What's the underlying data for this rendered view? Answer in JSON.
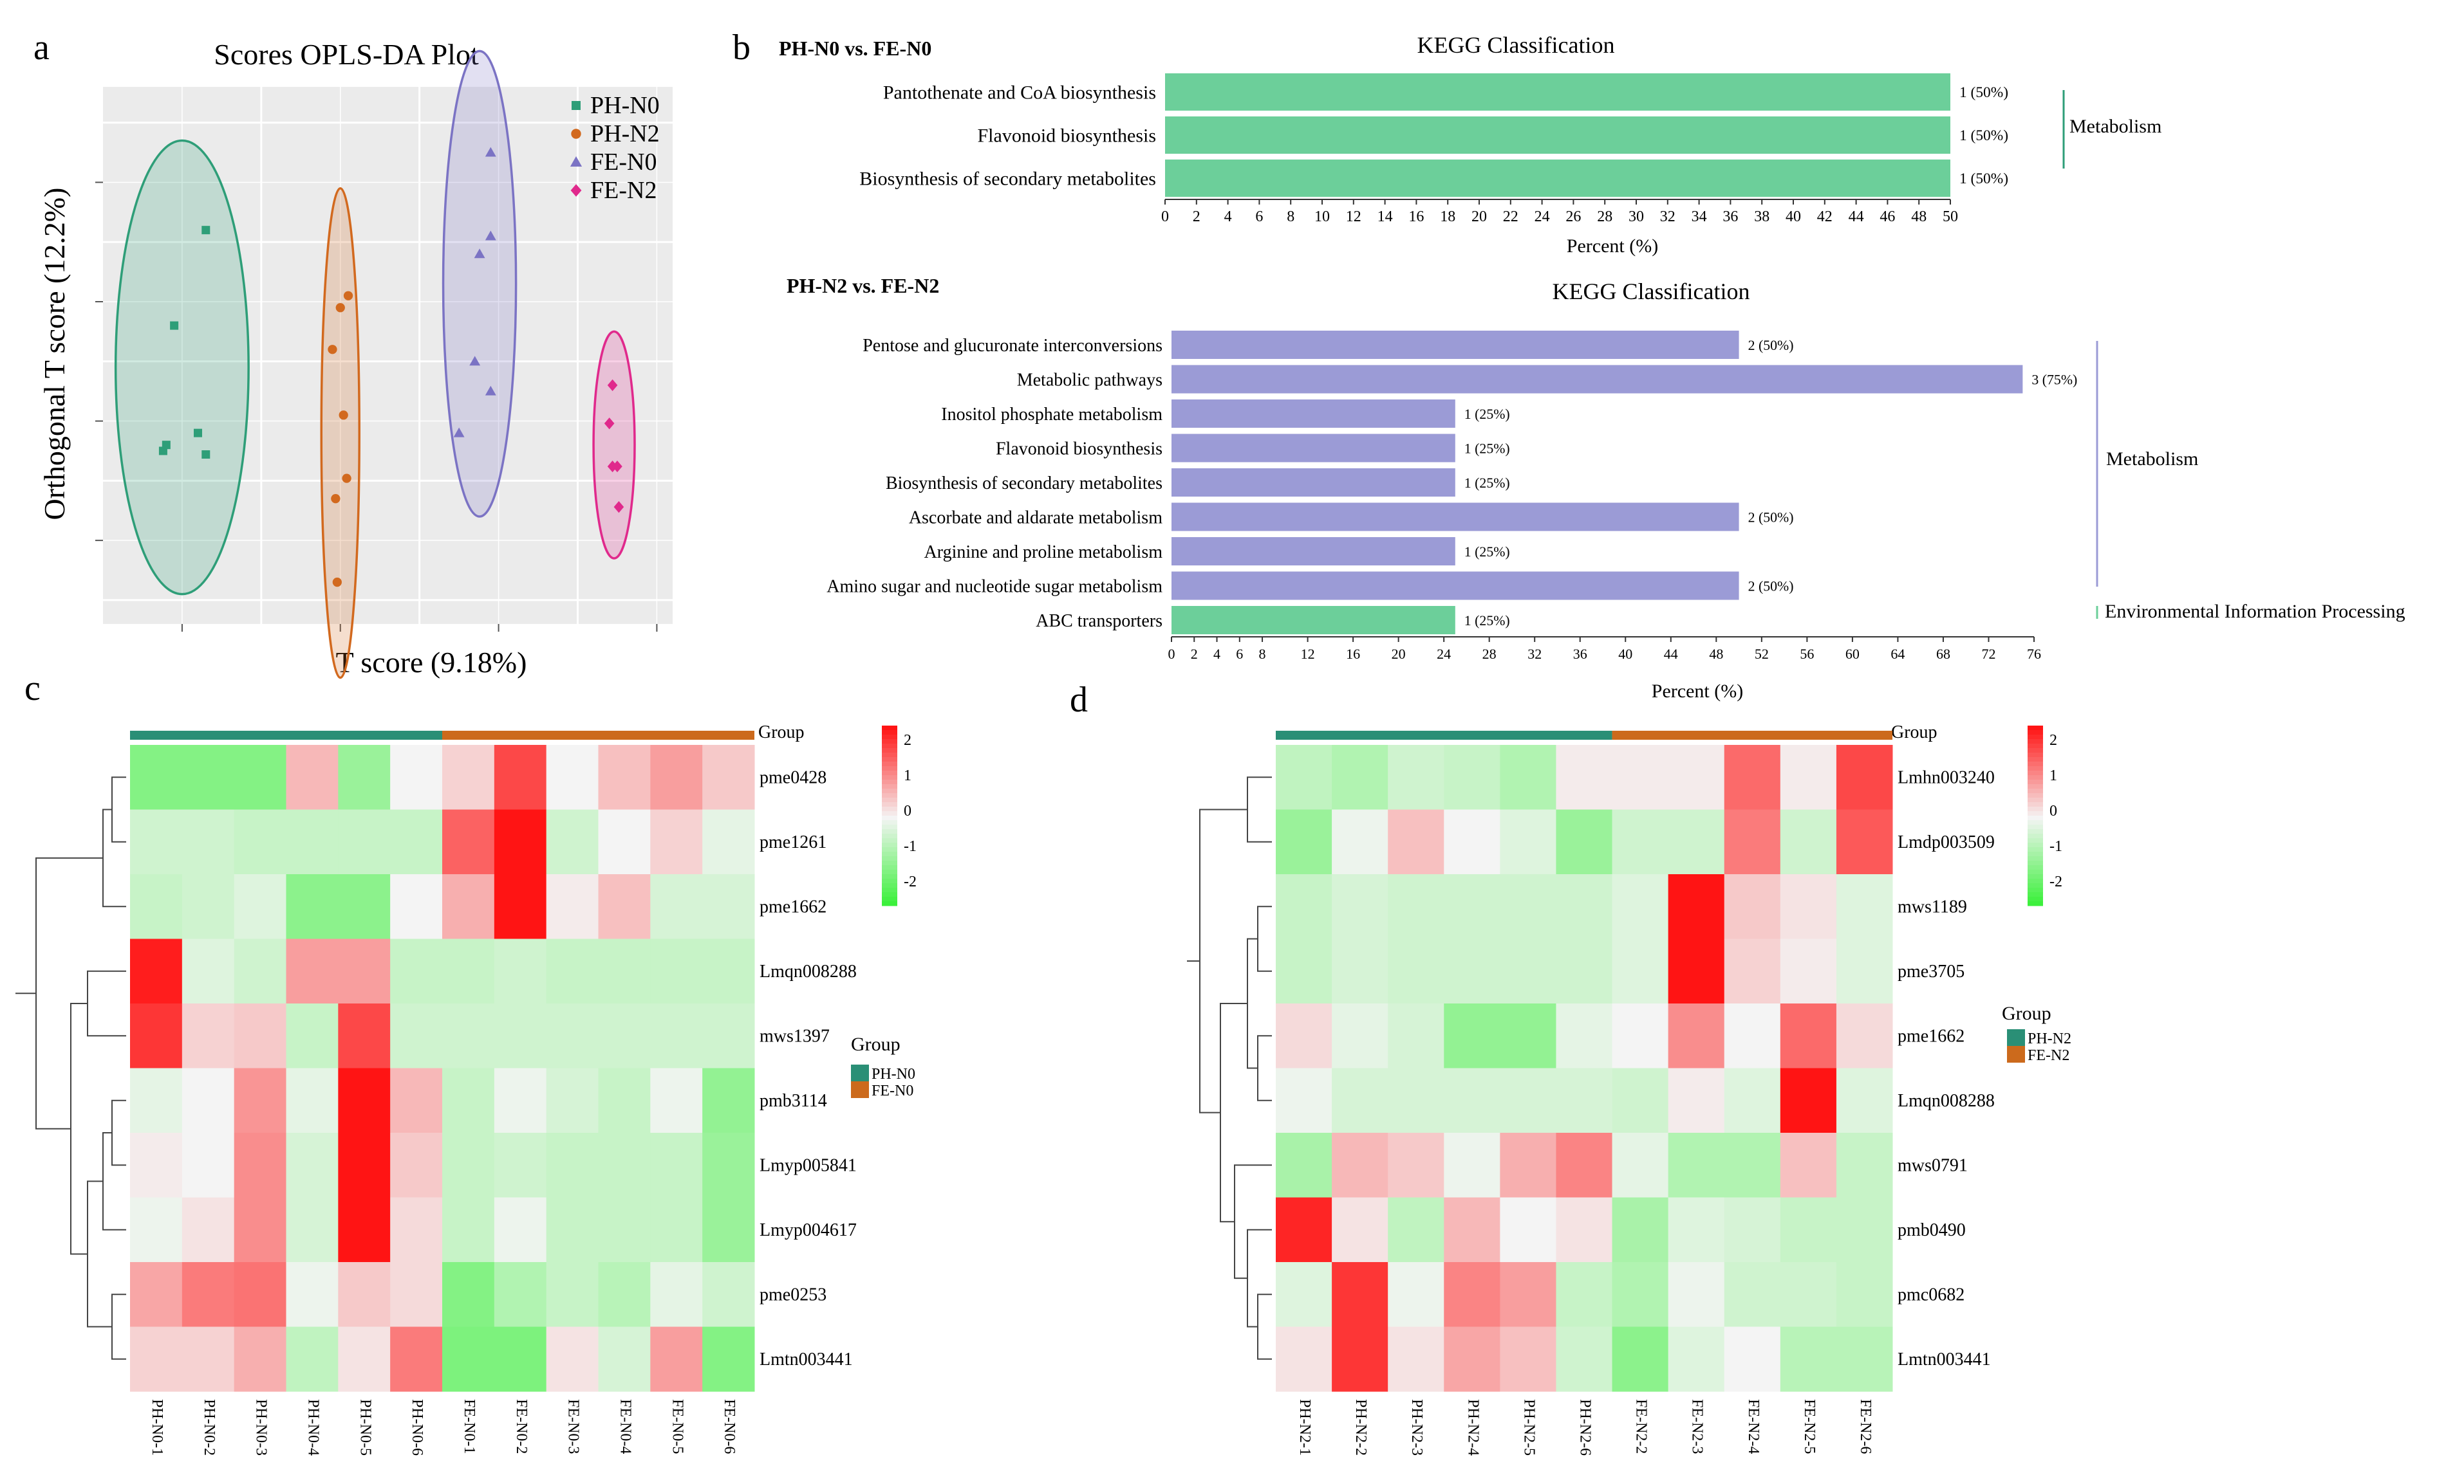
{
  "panel_labels": {
    "a": "a",
    "b": "b",
    "c": "c",
    "d": "d"
  },
  "colors": {
    "green": "#2e9e78",
    "orange": "#d2691e",
    "purple": "#7b73c4",
    "pink": "#e0298c",
    "bar_green": "#6ccf9a",
    "bar_purple": "#9b9bd6",
    "teal_bar": "#2a8f76",
    "orange_bar": "#cc6a1c",
    "heat_high": "#ff1a1a",
    "heat_mid": "#f4f4f4",
    "heat_low": "#33ee33"
  },
  "chart_data": [
    {
      "type": "scatter",
      "title": "Scores OPLS-DA Plot",
      "xlabel": "T score (9.18%)",
      "ylabel": "Orthogonal T score (12.2%)",
      "grid": true,
      "legend_position": "top-right",
      "series": [
        {
          "name": "PH-N0",
          "marker": "square",
          "points": [
            [
              -1.35,
              1.1
            ],
            [
              -1.55,
              0.3
            ],
            [
              -1.6,
              -0.7
            ],
            [
              -1.62,
              -0.75
            ],
            [
              -1.4,
              -0.6
            ],
            [
              -1.35,
              -0.78
            ]
          ]
        },
        {
          "name": "PH-N2",
          "marker": "circle",
          "points": [
            [
              -0.5,
              0.45
            ],
            [
              -0.45,
              0.55
            ],
            [
              -0.55,
              0.1
            ],
            [
              -0.48,
              -0.45
            ],
            [
              -0.46,
              -0.98
            ],
            [
              -0.53,
              -1.15
            ],
            [
              -0.52,
              -1.85
            ]
          ]
        },
        {
          "name": "FE-N0",
          "marker": "triangle",
          "points": [
            [
              0.45,
              1.75
            ],
            [
              0.38,
              0.9
            ],
            [
              0.45,
              1.05
            ],
            [
              0.35,
              0.0
            ],
            [
              0.45,
              -0.25
            ],
            [
              0.25,
              -0.6
            ]
          ]
        },
        {
          "name": "FE-N2",
          "marker": "diamond",
          "points": [
            [
              1.22,
              -0.2
            ],
            [
              1.2,
              -0.52
            ],
            [
              1.22,
              -0.88
            ],
            [
              1.25,
              -0.88
            ],
            [
              1.26,
              -1.22
            ]
          ]
        }
      ]
    },
    {
      "type": "bar",
      "comparison": "PH-N0 vs. FE-N0",
      "title": "KEGG Classification",
      "xlabel": "Percent (%)",
      "xlim": [
        0,
        50
      ],
      "ticks": [
        0,
        2,
        4,
        6,
        8,
        10,
        12,
        14,
        16,
        18,
        20,
        22,
        24,
        26,
        28,
        30,
        32,
        34,
        36,
        38,
        40,
        42,
        44,
        46,
        48,
        50
      ],
      "categories": [
        "Pantothenate and CoA biosynthesis",
        "Flavonoid biosynthesis",
        "Biosynthesis of secondary metabolites"
      ],
      "values": [
        50,
        50,
        50
      ],
      "labels": [
        "1 (50%)",
        "1 (50%)",
        "1 (50%)"
      ],
      "group_label": "Metabolism"
    },
    {
      "type": "bar",
      "comparison": "PH-N2 vs. FE-N2",
      "title": "KEGG Classification",
      "xlabel": "Percent (%)",
      "xlim": [
        0,
        76
      ],
      "ticks": [
        0,
        2,
        4,
        6,
        8,
        12,
        16,
        20,
        24,
        28,
        32,
        36,
        40,
        44,
        48,
        52,
        56,
        60,
        64,
        68,
        72,
        76
      ],
      "categories": [
        "Pentose and glucuronate interconversions",
        "Metabolic pathways",
        "Inositol phosphate metabolism",
        "Flavonoid biosynthesis",
        "Biosynthesis of secondary metabolites",
        "Ascorbate and aldarate metabolism",
        "Arginine and proline metabolism",
        "Amino sugar and nucleotide sugar metabolism",
        "ABC transporters"
      ],
      "values": [
        50,
        75,
        25,
        25,
        25,
        50,
        25,
        50,
        25
      ],
      "labels": [
        "2 (50%)",
        "3 (75%)",
        "1 (25%)",
        "1 (25%)",
        "1 (25%)",
        "2 (50%)",
        "1 (25%)",
        "2 (50%)",
        "1 (25%)"
      ],
      "bar_colors": [
        "purple",
        "purple",
        "purple",
        "purple",
        "purple",
        "purple",
        "purple",
        "purple",
        "green"
      ],
      "group_labels": [
        "Metabolism",
        "Environmental Information Processing"
      ]
    },
    {
      "type": "heatmap",
      "group_title": "Group",
      "legend_title": "Group",
      "groups": [
        "PH-N0",
        "FE-N0"
      ],
      "scale_ticks": [
        2,
        1,
        0,
        -1,
        -2
      ],
      "columns": [
        "PH-N0-1",
        "PH-N0-2",
        "PH-N0-3",
        "PH-N0-4",
        "PH-N0-5",
        "PH-N0-6",
        "FE-N0-1",
        "FE-N0-2",
        "FE-N0-3",
        "FE-N0-4",
        "FE-N0-5",
        "FE-N0-6"
      ],
      "rows": [
        "pme0428",
        "pme1261",
        "pme1662",
        "Lmqn008288",
        "mws1397",
        "pmb3114",
        "Lmyp005841",
        "Lmyp004617",
        "pme0253",
        "Lmtn003441"
      ],
      "values": [
        [
          -1.5,
          -1.5,
          -1.5,
          0.7,
          -1.2,
          0.0,
          0.4,
          2.0,
          0.0,
          0.6,
          1.0,
          0.5
        ],
        [
          -0.5,
          -0.5,
          -0.6,
          -0.6,
          -0.6,
          -0.6,
          1.7,
          2.6,
          -0.5,
          0.0,
          0.4,
          -0.2
        ],
        [
          -0.6,
          -0.5,
          -0.3,
          -1.4,
          -1.4,
          0.0,
          0.8,
          2.8,
          0.1,
          0.6,
          -0.4,
          -0.4
        ],
        [
          2.5,
          -0.3,
          -0.5,
          1.0,
          1.0,
          -0.6,
          -0.6,
          -0.5,
          -0.6,
          -0.6,
          -0.6,
          -0.6
        ],
        [
          2.2,
          0.4,
          0.5,
          -0.6,
          2.0,
          -0.5,
          -0.5,
          -0.5,
          -0.5,
          -0.5,
          -0.5,
          -0.5
        ],
        [
          -0.2,
          0.0,
          1.1,
          -0.2,
          2.6,
          0.7,
          -0.6,
          -0.1,
          -0.4,
          -0.6,
          -0.1,
          -1.3
        ],
        [
          0.1,
          0.0,
          1.2,
          -0.4,
          2.6,
          0.5,
          -0.6,
          -0.5,
          -0.6,
          -0.6,
          -0.6,
          -1.2
        ],
        [
          -0.1,
          0.2,
          1.2,
          -0.4,
          2.6,
          0.3,
          -0.6,
          -0.1,
          -0.6,
          -0.6,
          -0.6,
          -1.2
        ],
        [
          0.9,
          1.4,
          1.5,
          -0.1,
          0.5,
          0.3,
          -1.5,
          -0.9,
          -0.6,
          -0.8,
          -0.2,
          -0.5
        ],
        [
          0.4,
          0.4,
          0.8,
          -0.7,
          0.2,
          1.4,
          -1.6,
          -1.6,
          0.2,
          -0.4,
          1.0,
          -1.5
        ]
      ]
    },
    {
      "type": "heatmap",
      "group_title": "Group",
      "legend_title": "Group",
      "groups": [
        "PH-N2",
        "FE-N2"
      ],
      "scale_ticks": [
        2,
        1,
        0,
        -1,
        -2
      ],
      "columns": [
        "PH-N2-1",
        "PH-N2-2",
        "PH-N2-3",
        "PH-N2-4",
        "PH-N2-5",
        "PH-N2-6",
        "FE-N2-2",
        "FE-N2-3",
        "FE-N2-4",
        "FE-N2-5",
        "FE-N2-6"
      ],
      "rows": [
        "Lmhn003240",
        "Lmdp003509",
        "mws1189",
        "pme3705",
        "pme1662",
        "Lmqn008288",
        "mws0791",
        "pmb0490",
        "pmc0682",
        "Lmtn003441"
      ],
      "values": [
        [
          -0.7,
          -0.9,
          -0.5,
          -0.6,
          -0.9,
          0.1,
          0.1,
          0.1,
          1.6,
          0.1,
          2.0
        ],
        [
          -1.2,
          -0.1,
          0.6,
          0.0,
          -0.3,
          -1.2,
          -0.5,
          -0.5,
          1.4,
          -0.5,
          1.8
        ],
        [
          -0.6,
          -0.4,
          -0.5,
          -0.5,
          -0.5,
          -0.5,
          -0.3,
          2.8,
          0.5,
          0.2,
          -0.3
        ],
        [
          -0.6,
          -0.4,
          -0.5,
          -0.5,
          -0.5,
          -0.5,
          -0.3,
          2.8,
          0.4,
          0.1,
          -0.3
        ],
        [
          0.3,
          -0.2,
          -0.4,
          -1.3,
          -1.3,
          -0.2,
          0.0,
          1.2,
          0.0,
          1.6,
          0.3
        ],
        [
          -0.1,
          -0.4,
          -0.4,
          -0.4,
          -0.4,
          -0.4,
          -0.5,
          0.1,
          -0.3,
          2.8,
          -0.3
        ],
        [
          -1.0,
          0.7,
          0.5,
          -0.1,
          0.8,
          1.3,
          -0.2,
          -0.9,
          -0.9,
          0.6,
          -0.6
        ],
        [
          2.4,
          0.2,
          -0.7,
          0.7,
          0.0,
          0.2,
          -1.0,
          -0.3,
          -0.4,
          -0.6,
          -0.6
        ],
        [
          -0.3,
          2.2,
          -0.1,
          1.3,
          1.0,
          -0.6,
          -0.9,
          -0.1,
          -0.5,
          -0.5,
          -0.6
        ],
        [
          0.2,
          2.2,
          0.2,
          0.9,
          0.6,
          -0.5,
          -1.4,
          -0.3,
          0.0,
          -0.8,
          -0.8
        ]
      ]
    }
  ]
}
